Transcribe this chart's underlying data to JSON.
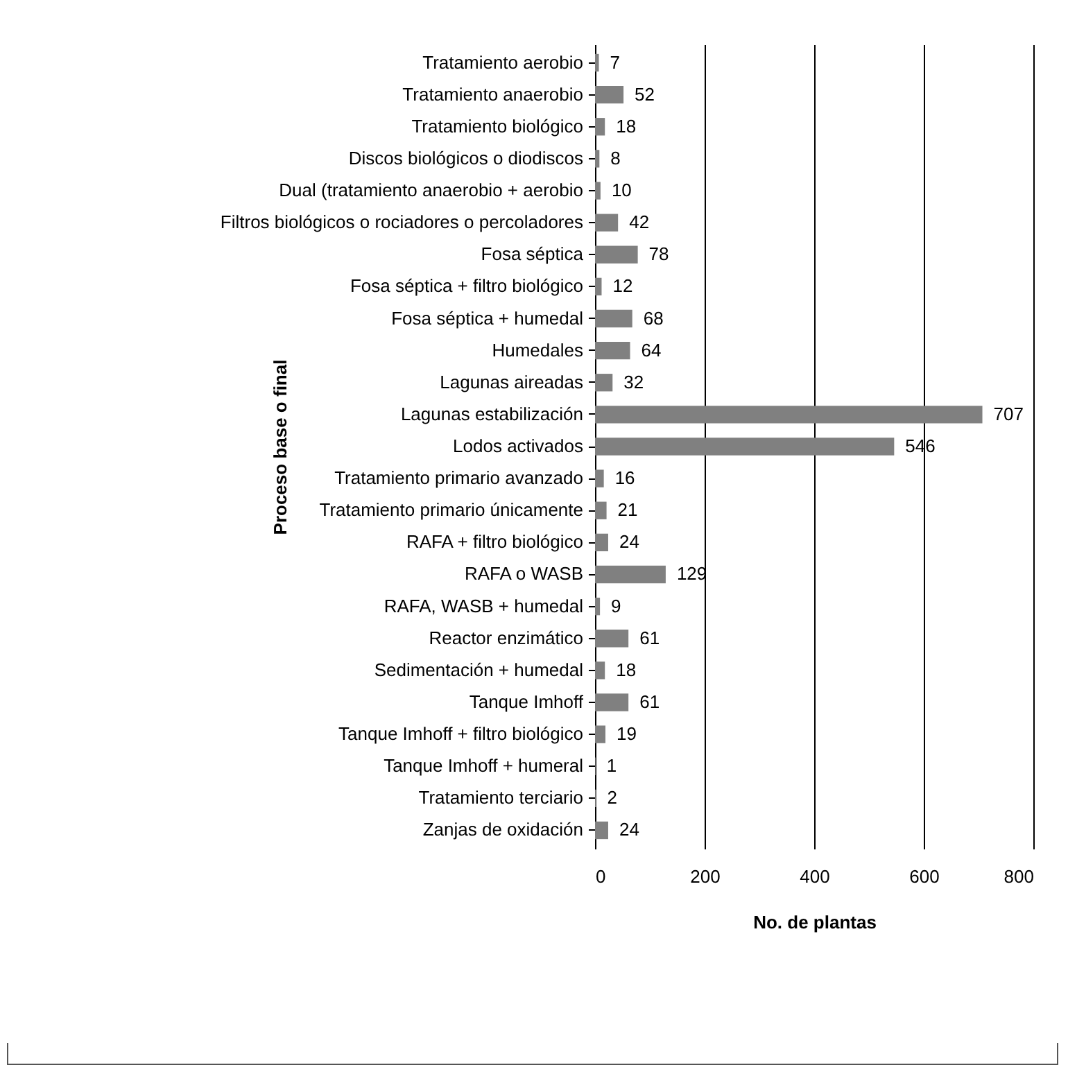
{
  "chart_data": {
    "type": "bar",
    "orientation": "horizontal",
    "xlabel": "No. de plantas",
    "ylabel": "Proceso base o final",
    "categories": [
      "Tratamiento aerobio",
      "Tratamiento anaerobio",
      "Tratamiento biológico",
      "Discos biológicos o diodiscos",
      "Dual (tratamiento anaerobio + aerobio",
      "Filtros biológicos o rociadores o percoladores",
      "Fosa séptica",
      "Fosa séptica + filtro biológico",
      "Fosa séptica + humedal",
      "Humedales",
      "Lagunas aireadas",
      "Lagunas estabilización",
      "Lodos activados",
      "Tratamiento primario avanzado",
      "Tratamiento primario únicamente",
      "RAFA + filtro biológico",
      "RAFA o WASB",
      "RAFA, WASB + humedal",
      "Reactor enzimático",
      "Sedimentación + humedal",
      "Tanque Imhoff",
      "Tanque Imhoff + filtro biológico",
      "Tanque Imhoff + humeral",
      "Tratamiento terciario",
      "Zanjas de oxidación"
    ],
    "values": [
      7,
      52,
      18,
      8,
      10,
      42,
      78,
      12,
      68,
      64,
      32,
      707,
      546,
      16,
      21,
      24,
      129,
      9,
      61,
      18,
      61,
      19,
      1,
      2,
      24
    ],
    "color": "#808080",
    "xlim": [
      0,
      800
    ],
    "xticks": [
      0,
      200,
      400,
      600,
      800
    ],
    "grid": "x",
    "data_labels": true
  }
}
